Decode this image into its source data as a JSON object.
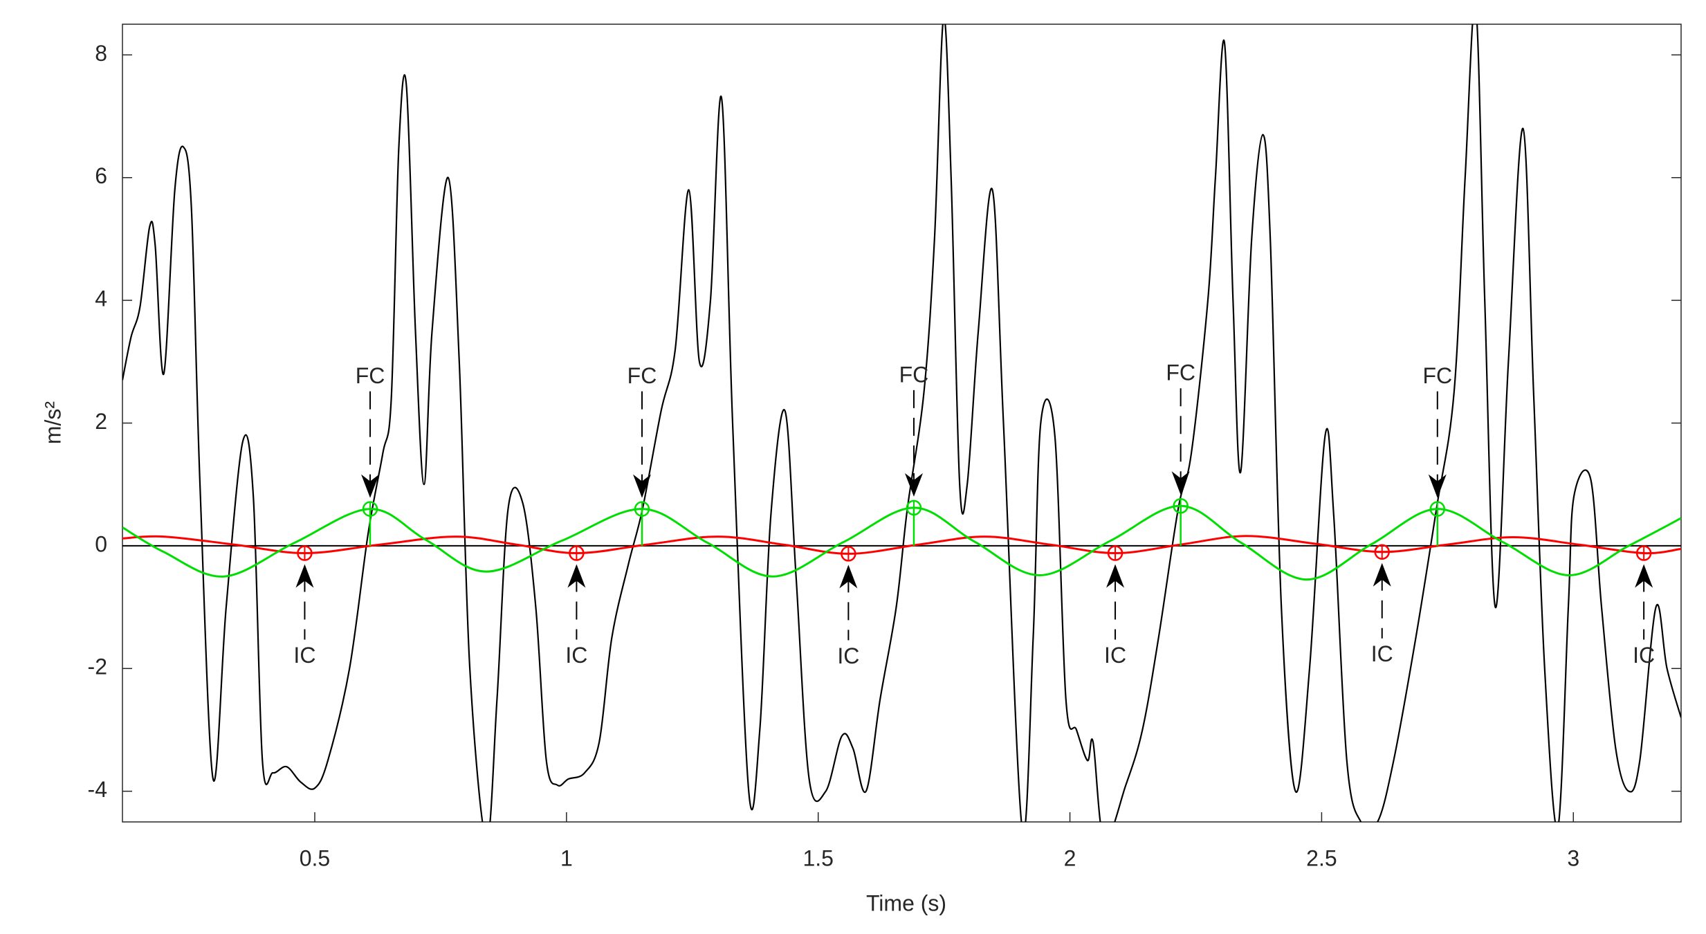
{
  "chart_data": {
    "type": "line",
    "xlabel": "Time (s)",
    "ylabel": "m/s²",
    "xlim": [
      0.118,
      3.214
    ],
    "ylim": [
      -4.5,
      8.5
    ],
    "xticks": [
      0.5,
      1,
      1.5,
      2,
      2.5,
      3
    ],
    "yticks": [
      -4,
      -2,
      0,
      2,
      4,
      6,
      8
    ],
    "series": [
      {
        "color": "#000000",
        "x": [
          0.118,
          0.135,
          0.153,
          0.172,
          0.183,
          0.2,
          0.222,
          0.239,
          0.255,
          0.272,
          0.298,
          0.324,
          0.357,
          0.378,
          0.396,
          0.417,
          0.444,
          0.472,
          0.5,
          0.526,
          0.569,
          0.606,
          0.635,
          0.652,
          0.667,
          0.682,
          0.7,
          0.717,
          0.733,
          0.765,
          0.787,
          0.808,
          0.841,
          0.862,
          0.884,
          0.913,
          0.939,
          0.96,
          0.982,
          1.004,
          1.036,
          1.065,
          1.09,
          1.123,
          1.151,
          1.188,
          1.216,
          1.243,
          1.264,
          1.286,
          1.308,
          1.33,
          1.362,
          1.384,
          1.406,
          1.434,
          1.456,
          1.482,
          1.515,
          1.547,
          1.569,
          1.595,
          1.623,
          1.655,
          1.677,
          1.71,
          1.731,
          1.749,
          1.764,
          1.781,
          1.796,
          1.818,
          1.846,
          1.868,
          1.905,
          1.927,
          1.942,
          1.97,
          1.992,
          2.013,
          2.035,
          2.046,
          2.068,
          2.111,
          2.144,
          2.176,
          2.215,
          2.241,
          2.274,
          2.289,
          2.307,
          2.324,
          2.339,
          2.361,
          2.383,
          2.398,
          2.42,
          2.448,
          2.476,
          2.507,
          2.524,
          2.55,
          2.578,
          2.611,
          2.643,
          2.687,
          2.728,
          2.763,
          2.785,
          2.806,
          2.824,
          2.845,
          2.871,
          2.9,
          2.921,
          2.943,
          2.969,
          2.99,
          3.001,
          3.034,
          3.056,
          3.084,
          3.11,
          3.132,
          3.164,
          3.186,
          3.214
        ],
        "values": [
          2.7,
          3.4,
          3.9,
          5.2,
          4.9,
          2.8,
          5.8,
          6.5,
          5.5,
          1.0,
          -3.8,
          -1.0,
          1.7,
          0.8,
          -3.5,
          -3.7,
          -3.6,
          -3.85,
          -3.95,
          -3.5,
          -2.0,
          0.2,
          1.5,
          2.4,
          6.5,
          7.5,
          3.5,
          1.0,
          3.5,
          6.0,
          3.0,
          -2.0,
          -4.8,
          -2.5,
          0.6,
          0.7,
          -1.0,
          -3.5,
          -3.9,
          -3.8,
          -3.7,
          -3.2,
          -1.5,
          -0.3,
          0.6,
          2.2,
          3.2,
          5.8,
          3.0,
          4.0,
          7.3,
          2.0,
          -4.0,
          -3.0,
          0.5,
          2.2,
          -0.5,
          -3.8,
          -4.0,
          -3.1,
          -3.3,
          -4.0,
          -2.5,
          -1.0,
          0.6,
          2.5,
          5.0,
          8.6,
          6.0,
          1.0,
          1.0,
          3.5,
          5.8,
          2.0,
          -4.6,
          -1.5,
          2.0,
          1.8,
          -2.5,
          -3.0,
          -3.5,
          -3.2,
          -4.8,
          -3.9,
          -3.0,
          -1.5,
          0.6,
          1.5,
          4.0,
          6.0,
          8.2,
          4.0,
          1.2,
          5.0,
          6.7,
          5.0,
          -1.0,
          -4.0,
          -2.0,
          1.8,
          0.5,
          -3.5,
          -4.5,
          -4.5,
          -3.5,
          -1.5,
          0.6,
          2.5,
          6.0,
          8.8,
          4.0,
          -1.0,
          3.0,
          6.8,
          2.5,
          -2.0,
          -4.6,
          -1.0,
          0.8,
          1.1,
          -1.0,
          -3.3,
          -4.0,
          -3.5,
          -1.0,
          -2.0,
          -2.8
        ]
      },
      {
        "color": "#ff0000",
        "x": [
          0.118,
          0.2,
          0.34,
          0.48,
          0.63,
          0.78,
          0.9,
          1.02,
          1.16,
          1.3,
          1.43,
          1.56,
          1.7,
          1.83,
          1.96,
          2.09,
          2.22,
          2.35,
          2.49,
          2.62,
          2.75,
          2.88,
          3.01,
          3.14,
          3.214
        ],
        "values": [
          0.12,
          0.15,
          0.02,
          -0.12,
          0.02,
          0.15,
          0.02,
          -0.12,
          0.02,
          0.15,
          0.02,
          -0.13,
          0.02,
          0.15,
          0.02,
          -0.12,
          0.02,
          0.16,
          0.03,
          -0.1,
          0.02,
          0.14,
          0.02,
          -0.12,
          -0.05
        ]
      },
      {
        "color": "#00dd00",
        "x": [
          0.118,
          0.2,
          0.32,
          0.46,
          0.61,
          0.72,
          0.84,
          0.99,
          1.15,
          1.28,
          1.41,
          1.55,
          1.69,
          1.81,
          1.94,
          2.08,
          2.22,
          2.34,
          2.47,
          2.6,
          2.73,
          2.86,
          2.99,
          3.11,
          3.214
        ],
        "values": [
          0.3,
          -0.1,
          -0.5,
          0.05,
          0.6,
          0.1,
          -0.42,
          0.08,
          0.6,
          0.05,
          -0.5,
          0.06,
          0.62,
          0.07,
          -0.48,
          0.08,
          0.65,
          0.05,
          -0.55,
          0.03,
          0.6,
          0.06,
          -0.48,
          0.0,
          0.45
        ]
      }
    ],
    "ic": {
      "label": "IC",
      "color": "#ff0000",
      "x": [
        0.48,
        1.02,
        1.56,
        2.09,
        2.62,
        3.14
      ],
      "y": [
        -0.12,
        -0.12,
        -0.13,
        -0.12,
        -0.1,
        -0.12
      ]
    },
    "fc": {
      "label": "FC",
      "color": "#00dd00",
      "x": [
        0.61,
        1.15,
        1.69,
        2.22,
        2.73
      ],
      "y": [
        0.6,
        0.6,
        0.62,
        0.65,
        0.6
      ]
    },
    "zero_line": 0
  }
}
